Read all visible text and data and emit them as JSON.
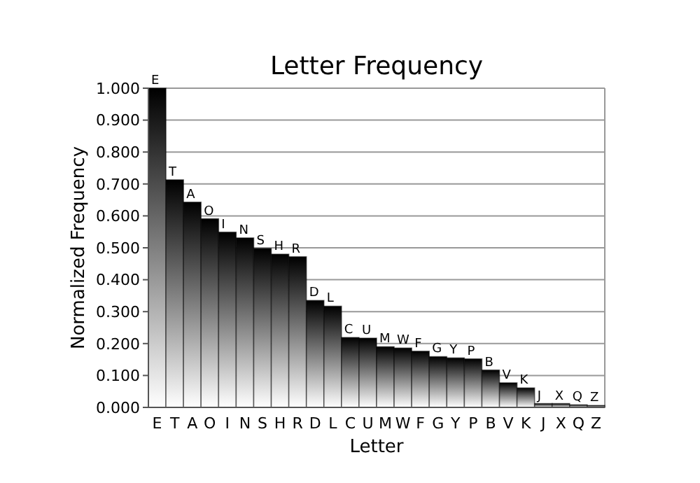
{
  "chart_data": {
    "type": "bar",
    "title": "Letter Frequency",
    "xlabel": "Letter",
    "ylabel": "Normalized Frequency",
    "categories": [
      "E",
      "T",
      "A",
      "O",
      "I",
      "N",
      "S",
      "H",
      "R",
      "D",
      "L",
      "C",
      "U",
      "M",
      "W",
      "F",
      "G",
      "Y",
      "P",
      "B",
      "V",
      "K",
      "J",
      "X",
      "Q",
      "Z"
    ],
    "values": [
      1.0,
      0.713,
      0.643,
      0.591,
      0.549,
      0.531,
      0.498,
      0.48,
      0.472,
      0.335,
      0.317,
      0.219,
      0.217,
      0.19,
      0.186,
      0.176,
      0.159,
      0.155,
      0.152,
      0.117,
      0.077,
      0.061,
      0.012,
      0.012,
      0.008,
      0.006
    ],
    "color": "#000000",
    "ylim": [
      0,
      1
    ],
    "yticks": [
      {
        "value": 0,
        "label": "0.000"
      },
      {
        "value": 0.1,
        "label": "0.100"
      },
      {
        "value": 0.2,
        "label": "0.200"
      },
      {
        "value": 0.3,
        "label": "0.300"
      },
      {
        "value": 0.4,
        "label": "0.400"
      },
      {
        "value": 0.5,
        "label": "0.500"
      },
      {
        "value": 0.6,
        "label": "0.600"
      },
      {
        "value": 0.7,
        "label": "0.700"
      },
      {
        "value": 0.8,
        "label": "0.800"
      },
      {
        "value": 0.9,
        "label": "0.900"
      },
      {
        "value": 1,
        "label": "1.000"
      }
    ],
    "grid": "y",
    "annotations": [
      {
        "text": "E",
        "x": "E",
        "y": 1.0
      },
      {
        "text": "T",
        "x": "T",
        "y": 0.713
      },
      {
        "text": "A",
        "x": "A",
        "y": 0.643
      },
      {
        "text": "O",
        "x": "O",
        "y": 0.591
      },
      {
        "text": "I",
        "x": "I",
        "y": 0.549
      },
      {
        "text": "N",
        "x": "N",
        "y": 0.531
      },
      {
        "text": "S",
        "x": "S",
        "y": 0.498
      },
      {
        "text": "H",
        "x": "H",
        "y": 0.48
      },
      {
        "text": "R",
        "x": "R",
        "y": 0.472
      },
      {
        "text": "D",
        "x": "D",
        "y": 0.335
      },
      {
        "text": "L",
        "x": "L",
        "y": 0.317
      },
      {
        "text": "C",
        "x": "C",
        "y": 0.219
      },
      {
        "text": "U",
        "x": "U",
        "y": 0.217
      },
      {
        "text": "M",
        "x": "M",
        "y": 0.19
      },
      {
        "text": "W",
        "x": "W",
        "y": 0.186
      },
      {
        "text": "F",
        "x": "F",
        "y": 0.176
      },
      {
        "text": "G",
        "x": "G",
        "y": 0.159
      },
      {
        "text": "Y",
        "x": "Y",
        "y": 0.155
      },
      {
        "text": "P",
        "x": "P",
        "y": 0.152
      },
      {
        "text": "B",
        "x": "B",
        "y": 0.117
      },
      {
        "text": "V",
        "x": "V",
        "y": 0.077
      },
      {
        "text": "K",
        "x": "K",
        "y": 0.061
      },
      {
        "text": "J",
        "x": "J",
        "y": 0.012
      },
      {
        "text": "X",
        "x": "X",
        "y": 0.012
      },
      {
        "text": "Q",
        "x": "Q",
        "y": 0.008
      },
      {
        "text": "Z",
        "x": "Z",
        "y": 0.006
      }
    ]
  }
}
